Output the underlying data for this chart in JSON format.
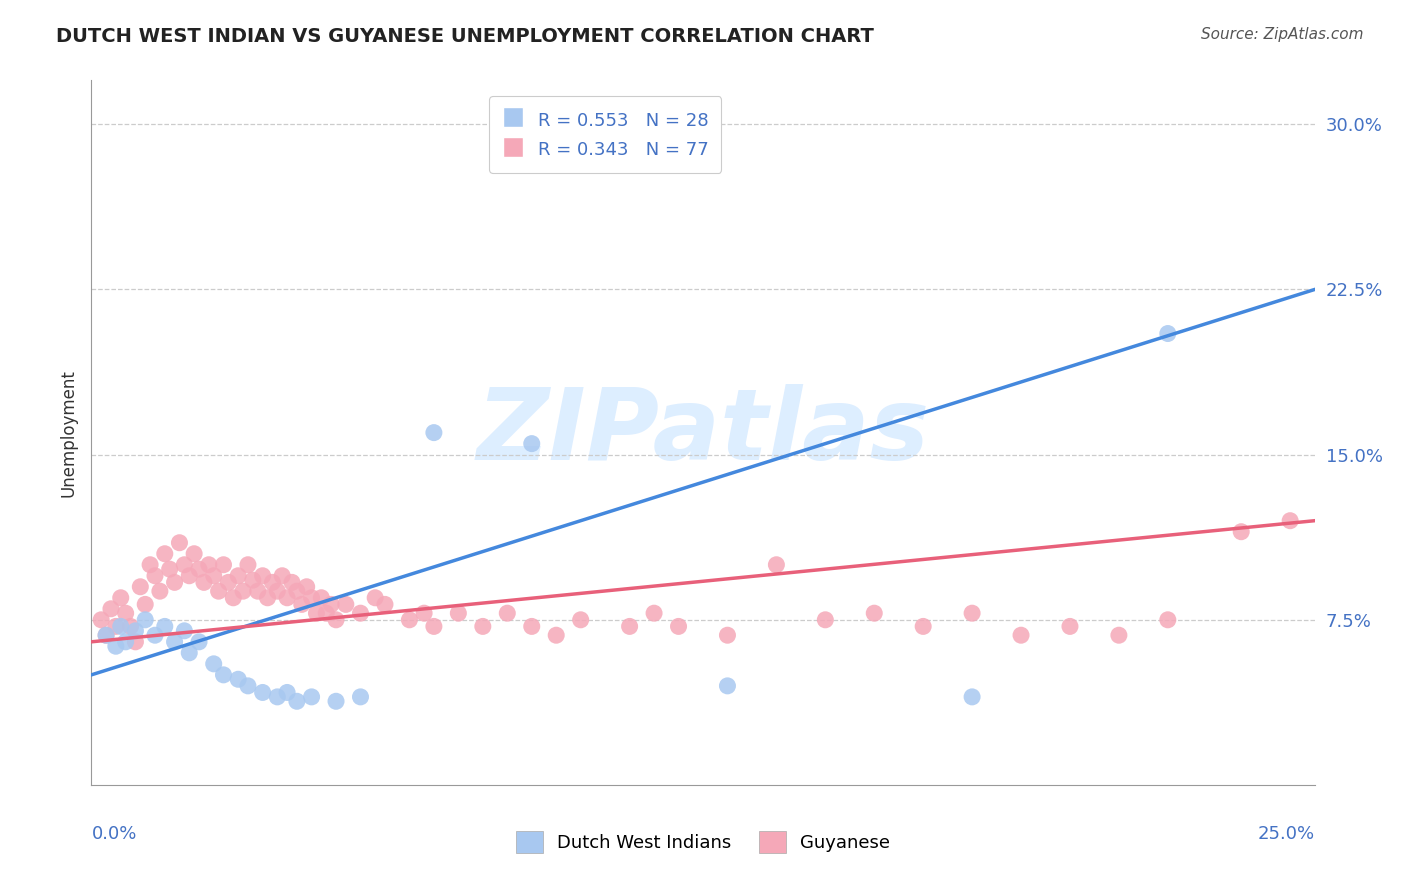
{
  "title": "DUTCH WEST INDIAN VS GUYANESE UNEMPLOYMENT CORRELATION CHART",
  "source": "Source: ZipAtlas.com",
  "ylabel": "Unemployment",
  "ytick_labels": [
    "7.5%",
    "15.0%",
    "22.5%",
    "30.0%"
  ],
  "ytick_values": [
    0.075,
    0.15,
    0.225,
    0.3
  ],
  "xlim": [
    0.0,
    0.25
  ],
  "ylim": [
    0.0,
    0.32
  ],
  "blue_R": "0.553",
  "blue_N": "28",
  "pink_R": "0.343",
  "pink_N": "77",
  "legend_label_blue": "Dutch West Indians",
  "legend_label_pink": "Guyanese",
  "blue_line_x0": 0.0,
  "blue_line_y0": 0.05,
  "blue_line_x1": 0.25,
  "blue_line_y1": 0.225,
  "pink_line_x0": 0.0,
  "pink_line_y0": 0.065,
  "pink_line_x1": 0.25,
  "pink_line_y1": 0.12,
  "blue_scatter": [
    [
      0.003,
      0.068
    ],
    [
      0.005,
      0.063
    ],
    [
      0.006,
      0.072
    ],
    [
      0.007,
      0.065
    ],
    [
      0.009,
      0.07
    ],
    [
      0.011,
      0.075
    ],
    [
      0.013,
      0.068
    ],
    [
      0.015,
      0.072
    ],
    [
      0.017,
      0.065
    ],
    [
      0.019,
      0.07
    ],
    [
      0.02,
      0.06
    ],
    [
      0.022,
      0.065
    ],
    [
      0.025,
      0.055
    ],
    [
      0.027,
      0.05
    ],
    [
      0.03,
      0.048
    ],
    [
      0.032,
      0.045
    ],
    [
      0.035,
      0.042
    ],
    [
      0.038,
      0.04
    ],
    [
      0.04,
      0.042
    ],
    [
      0.042,
      0.038
    ],
    [
      0.045,
      0.04
    ],
    [
      0.05,
      0.038
    ],
    [
      0.055,
      0.04
    ],
    [
      0.07,
      0.16
    ],
    [
      0.09,
      0.155
    ],
    [
      0.13,
      0.045
    ],
    [
      0.18,
      0.04
    ],
    [
      0.22,
      0.205
    ]
  ],
  "pink_scatter": [
    [
      0.002,
      0.075
    ],
    [
      0.003,
      0.068
    ],
    [
      0.004,
      0.08
    ],
    [
      0.005,
      0.072
    ],
    [
      0.006,
      0.085
    ],
    [
      0.007,
      0.078
    ],
    [
      0.008,
      0.072
    ],
    [
      0.009,
      0.065
    ],
    [
      0.01,
      0.09
    ],
    [
      0.011,
      0.082
    ],
    [
      0.012,
      0.1
    ],
    [
      0.013,
      0.095
    ],
    [
      0.014,
      0.088
    ],
    [
      0.015,
      0.105
    ],
    [
      0.016,
      0.098
    ],
    [
      0.017,
      0.092
    ],
    [
      0.018,
      0.11
    ],
    [
      0.019,
      0.1
    ],
    [
      0.02,
      0.095
    ],
    [
      0.021,
      0.105
    ],
    [
      0.022,
      0.098
    ],
    [
      0.023,
      0.092
    ],
    [
      0.024,
      0.1
    ],
    [
      0.025,
      0.095
    ],
    [
      0.026,
      0.088
    ],
    [
      0.027,
      0.1
    ],
    [
      0.028,
      0.092
    ],
    [
      0.029,
      0.085
    ],
    [
      0.03,
      0.095
    ],
    [
      0.031,
      0.088
    ],
    [
      0.032,
      0.1
    ],
    [
      0.033,
      0.093
    ],
    [
      0.034,
      0.088
    ],
    [
      0.035,
      0.095
    ],
    [
      0.036,
      0.085
    ],
    [
      0.037,
      0.092
    ],
    [
      0.038,
      0.088
    ],
    [
      0.039,
      0.095
    ],
    [
      0.04,
      0.085
    ],
    [
      0.041,
      0.092
    ],
    [
      0.042,
      0.088
    ],
    [
      0.043,
      0.082
    ],
    [
      0.044,
      0.09
    ],
    [
      0.045,
      0.085
    ],
    [
      0.046,
      0.078
    ],
    [
      0.047,
      0.085
    ],
    [
      0.048,
      0.078
    ],
    [
      0.049,
      0.082
    ],
    [
      0.05,
      0.075
    ],
    [
      0.052,
      0.082
    ],
    [
      0.055,
      0.078
    ],
    [
      0.058,
      0.085
    ],
    [
      0.06,
      0.082
    ],
    [
      0.065,
      0.075
    ],
    [
      0.068,
      0.078
    ],
    [
      0.07,
      0.072
    ],
    [
      0.075,
      0.078
    ],
    [
      0.08,
      0.072
    ],
    [
      0.085,
      0.078
    ],
    [
      0.09,
      0.072
    ],
    [
      0.095,
      0.068
    ],
    [
      0.1,
      0.075
    ],
    [
      0.11,
      0.072
    ],
    [
      0.115,
      0.078
    ],
    [
      0.12,
      0.072
    ],
    [
      0.13,
      0.068
    ],
    [
      0.14,
      0.1
    ],
    [
      0.15,
      0.075
    ],
    [
      0.16,
      0.078
    ],
    [
      0.17,
      0.072
    ],
    [
      0.18,
      0.078
    ],
    [
      0.19,
      0.068
    ],
    [
      0.2,
      0.072
    ],
    [
      0.21,
      0.068
    ],
    [
      0.22,
      0.075
    ],
    [
      0.235,
      0.115
    ],
    [
      0.245,
      0.12
    ]
  ],
  "grid_color": "#cccccc",
  "blue_color": "#a8c8f0",
  "pink_color": "#f5a8b8",
  "blue_line_color": "#4488dd",
  "pink_line_color": "#e8607a",
  "watermark_text": "ZIPatlas",
  "watermark_color": "#ddeeff",
  "background_color": "#ffffff",
  "title_color": "#222222",
  "axis_color": "#4472c4",
  "ylabel_color": "#333333",
  "source_color": "#555555",
  "legend_text_color": "#4472c4"
}
